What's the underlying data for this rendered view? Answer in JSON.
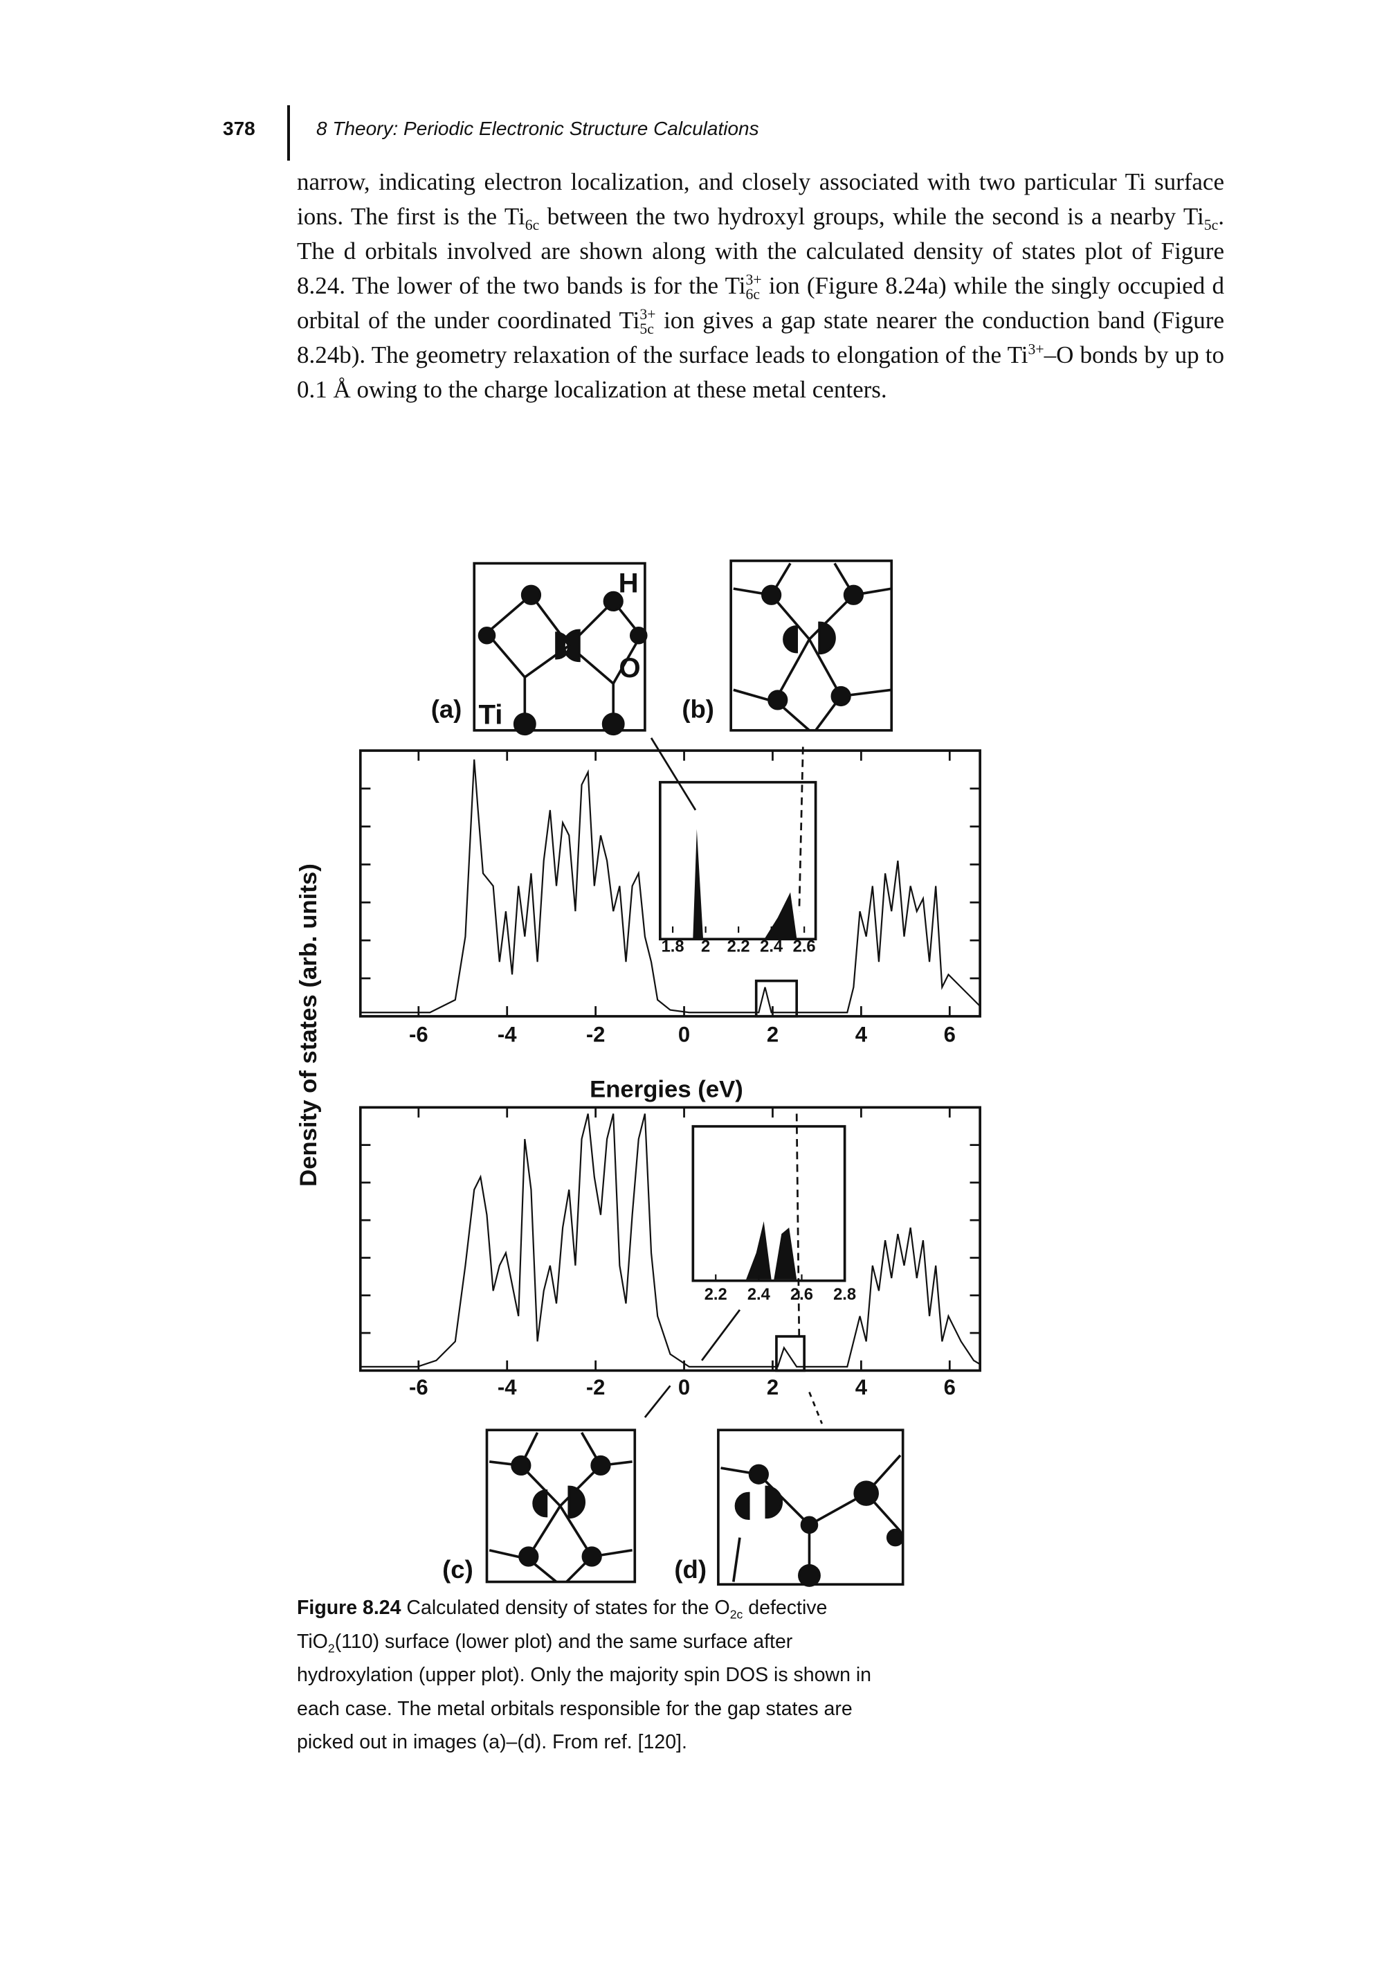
{
  "header": {
    "page_number": "378",
    "running_title": "8 Theory: Periodic Electronic Structure Calculations"
  },
  "body": {
    "runs": [
      {
        "text": "narrow, indicating electron localization, and closely associated with two particular Ti surface ions. The first is the "
      },
      {
        "text": "Ti",
        "sub": "6c"
      },
      {
        "text": " between the two hydroxyl groups, while the second is a nearby "
      },
      {
        "text": "Ti",
        "sub": "5c"
      },
      {
        "text": ". The d orbitals involved are shown along with the calculated density of states plot of Figure 8.24. The lower of the two bands is for the "
      },
      {
        "text": "Ti",
        "sup": "3+",
        "sub": "6c"
      },
      {
        "text": " ion (Figure 8.24a) while the singly occupied d orbital of the under coordinated "
      },
      {
        "text": "Ti",
        "sup": "3+",
        "sub": "5c"
      },
      {
        "text": " ion gives a gap state nearer the conduction band (Figure 8.24b). The geometry relaxation of the surface leads to elongation of the "
      },
      {
        "text": "Ti",
        "sup": "3+"
      },
      {
        "text": "–O bonds by up to 0.1 Å owing to the charge localization at these metal centers."
      }
    ]
  },
  "figure": {
    "panel_labels": [
      "(a)",
      "(b)",
      "(c)",
      "(d)"
    ],
    "atom_labels": [
      "H",
      "O",
      "Ti"
    ],
    "y_axis_label": "Density of states (arb. units)",
    "x_axis_label": "Energies (eV)",
    "upper_plot": {
      "xticks": [
        "-6",
        "-4",
        "-2",
        "0",
        "2",
        "4",
        "6"
      ],
      "inset_xticks": [
        "1.8",
        "2",
        "2.2",
        "2.4",
        "2.6"
      ]
    },
    "lower_plot": {
      "xticks": [
        "-6",
        "-4",
        "-2",
        "0",
        "2",
        "4",
        "6"
      ],
      "inset_xticks": [
        "2.2",
        "2.4",
        "2.6",
        "2.8"
      ]
    }
  },
  "caption": {
    "label": "Figure 8.24",
    "runs": [
      {
        "text": " Calculated density of states for the O",
        "sub": "2c"
      },
      {
        "text": " defective TiO",
        "sub": "2"
      },
      {
        "text": "(110) surface (lower plot) and the same surface after hydroxylation (upper plot). Only the majority spin DOS is shown in each case. The metal orbitals responsible for the gap states are picked out in images (a)–(d). From ref. [120]."
      }
    ]
  }
}
